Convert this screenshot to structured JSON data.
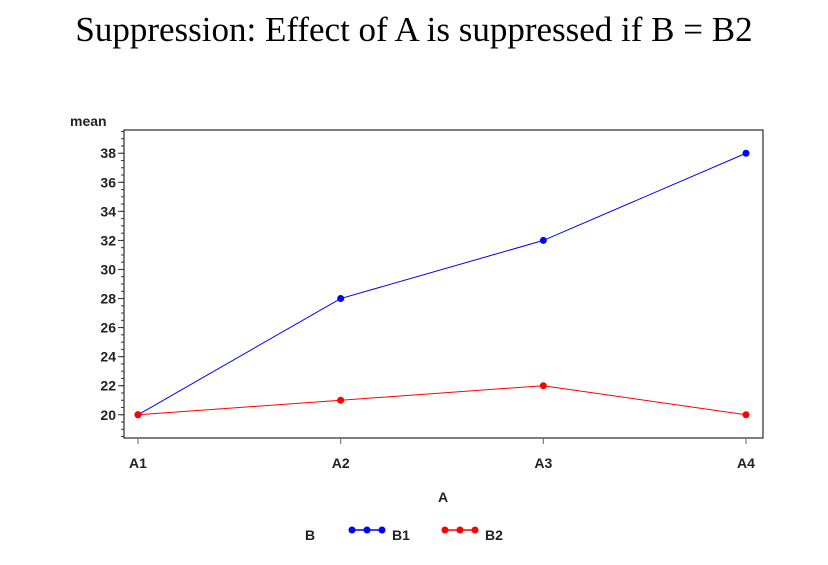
{
  "chart_data": {
    "type": "line",
    "title": "Suppression:  Effect of A is suppressed if B = B2",
    "xlabel": "A",
    "ylabel": "mean",
    "categories": [
      "A1",
      "A2",
      "A3",
      "A4"
    ],
    "yticks": [
      20,
      22,
      24,
      26,
      28,
      30,
      32,
      34,
      36,
      38
    ],
    "ylim": [
      18.4,
      39.6
    ],
    "legend_title": "B",
    "legend_position": "bottom",
    "series": [
      {
        "name": "B1",
        "color": "#0000ff",
        "values": [
          20,
          28,
          32,
          38
        ]
      },
      {
        "name": "B2",
        "color": "#ff0000",
        "values": [
          20,
          21,
          22,
          20
        ]
      }
    ]
  }
}
